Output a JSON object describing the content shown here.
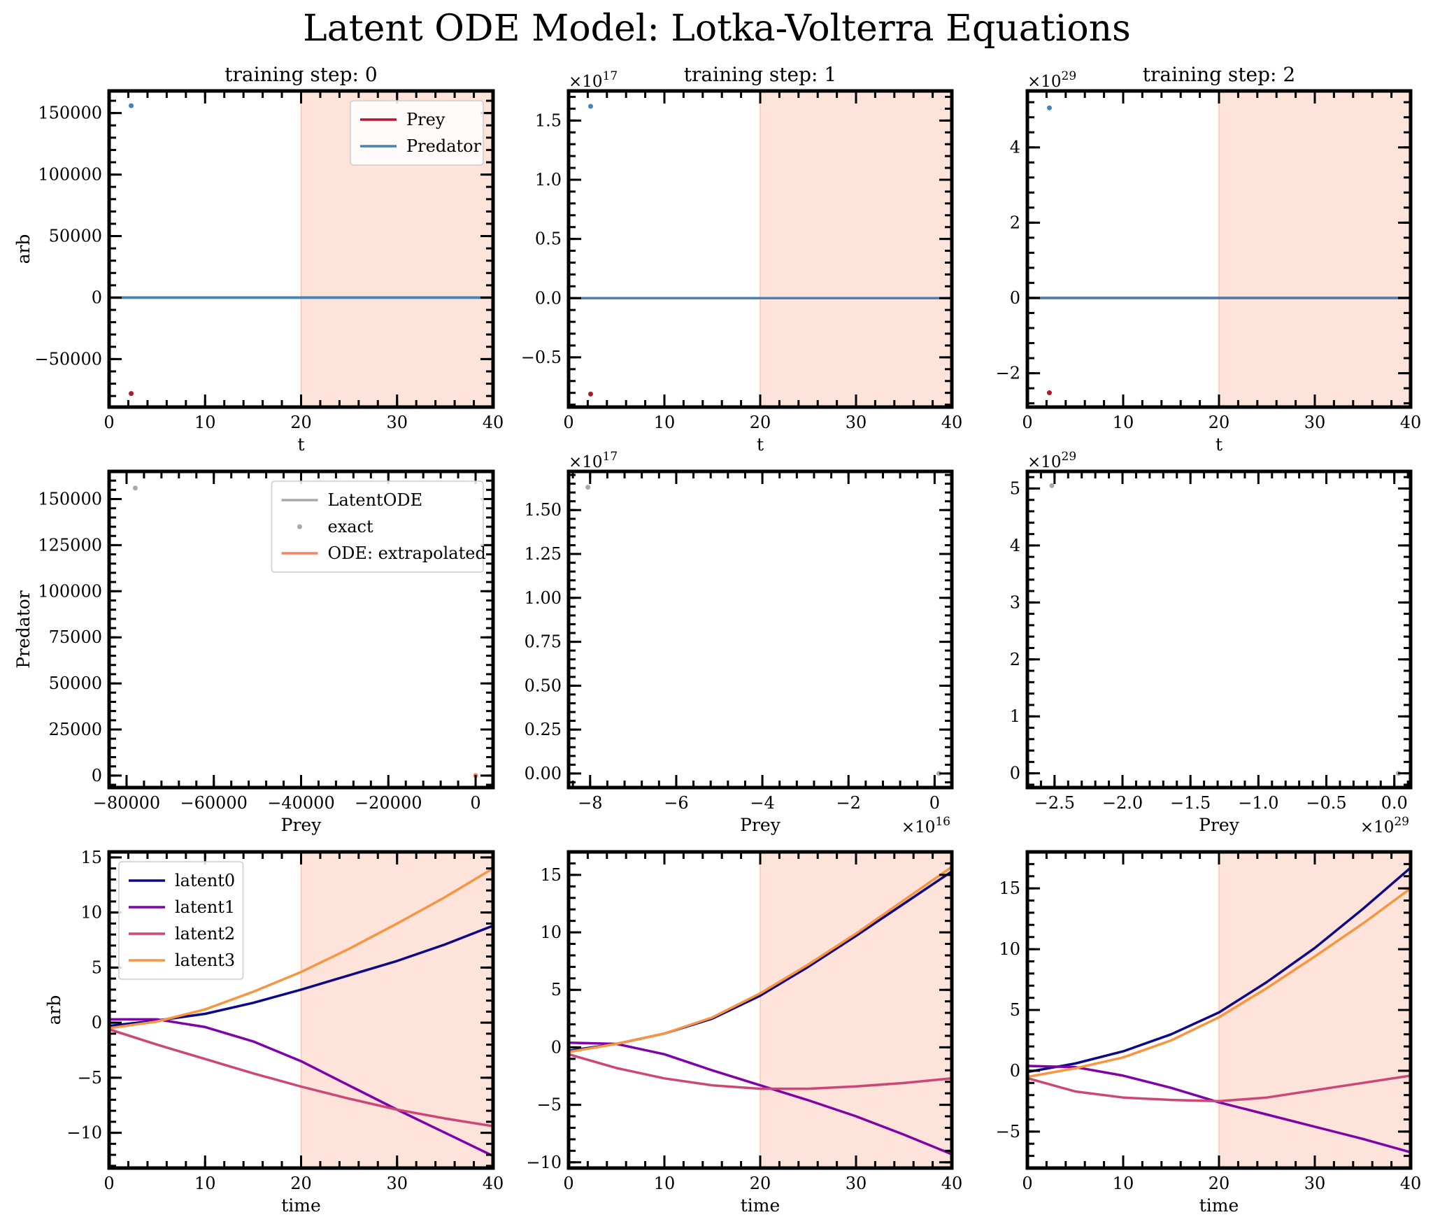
{
  "title": "Latent ODE Model: Lotka-Volterra Equations",
  "colors": {
    "prey": "#b2182b",
    "predator": "#4682b4",
    "latentode": "#a9a9a9",
    "exact": "#a9a9a9",
    "extrapolated": "#f4845f",
    "shade": "#fde3da",
    "latent0": "#0d0887",
    "latent1": "#7e03a8",
    "latent2": "#cc4778",
    "latent3": "#f89540"
  },
  "chart_data": [
    {
      "id": "ts0",
      "type": "line",
      "title": "training step: 0",
      "xlabel": "t",
      "ylabel": "arb",
      "xlim": [
        0,
        40
      ],
      "ylim": [
        -89000,
        168000
      ],
      "xticks": [
        0,
        10,
        20,
        30,
        40
      ],
      "xticklabels": [
        "0",
        "10",
        "20",
        "30",
        "40"
      ],
      "yticks": [
        -50000,
        0,
        50000,
        100000,
        150000
      ],
      "yticklabels": [
        "−50000",
        "0",
        "50000",
        "100000",
        "150000"
      ],
      "offset_text": "",
      "shade": [
        20,
        40
      ],
      "legend": [
        {
          "label": "Prey",
          "color_key": "prey",
          "kind": "line"
        },
        {
          "label": "Predator",
          "color_key": "predator",
          "kind": "line"
        }
      ],
      "legend_position": "upper right",
      "series": [
        {
          "name": "Prey",
          "color_key": "prey",
          "x": [
            0,
            2.5,
            40
          ],
          "y": [
            0,
            0,
            0
          ]
        },
        {
          "name": "Predator",
          "color_key": "predator",
          "x": [
            0,
            2.5,
            40
          ],
          "y": [
            0,
            0,
            0
          ]
        }
      ],
      "points": [
        {
          "color_key": "predator",
          "x": 2.3,
          "y": 156000
        },
        {
          "color_key": "prey",
          "x": 2.3,
          "y": -78000
        }
      ]
    },
    {
      "id": "ts1",
      "type": "line",
      "title": "training step: 1",
      "xlabel": "t",
      "ylabel": "",
      "xlim": [
        0,
        40
      ],
      "ylim": [
        -0.92,
        1.75
      ],
      "xticks": [
        0,
        10,
        20,
        30,
        40
      ],
      "xticklabels": [
        "0",
        "10",
        "20",
        "30",
        "40"
      ],
      "yticks": [
        -0.5,
        0,
        0.5,
        1.0,
        1.5
      ],
      "yticklabels": [
        "−0.5",
        "0.0",
        "0.5",
        "1.0",
        "1.5"
      ],
      "offset_text": "×10^17",
      "shade": [
        20,
        40
      ],
      "series": [
        {
          "name": "Prey",
          "color_key": "prey",
          "x": [
            0,
            40
          ],
          "y": [
            0,
            0
          ]
        },
        {
          "name": "Predator",
          "color_key": "predator",
          "x": [
            0,
            40
          ],
          "y": [
            0,
            0
          ]
        }
      ],
      "points": [
        {
          "color_key": "predator",
          "x": 2.3,
          "y": 1.62
        },
        {
          "color_key": "prey",
          "x": 2.3,
          "y": -0.81
        }
      ]
    },
    {
      "id": "ts2",
      "type": "line",
      "title": "training step: 2",
      "xlabel": "t",
      "ylabel": "",
      "xlim": [
        0,
        40
      ],
      "ylim": [
        -2.9,
        5.5
      ],
      "xticks": [
        0,
        10,
        20,
        30,
        40
      ],
      "xticklabels": [
        "0",
        "10",
        "20",
        "30",
        "40"
      ],
      "yticks": [
        -2,
        0,
        2,
        4
      ],
      "yticklabels": [
        "−2",
        "0",
        "2",
        "4"
      ],
      "offset_text": "×10^29",
      "shade": [
        20,
        40
      ],
      "series": [
        {
          "name": "Prey",
          "color_key": "prey",
          "x": [
            0,
            40
          ],
          "y": [
            0,
            0
          ]
        },
        {
          "name": "Predator",
          "color_key": "predator",
          "x": [
            0,
            40
          ],
          "y": [
            0,
            0
          ]
        }
      ],
      "points": [
        {
          "color_key": "predator",
          "x": 2.3,
          "y": 5.05
        },
        {
          "color_key": "prey",
          "x": 2.3,
          "y": -2.52
        }
      ]
    },
    {
      "id": "phase0",
      "type": "scatter",
      "xlabel": "Prey",
      "ylabel": "Predator",
      "xlim": [
        -84000,
        4000
      ],
      "ylim": [
        -6500,
        165000
      ],
      "xticks": [
        -80000,
        -60000,
        -40000,
        -20000,
        0
      ],
      "xticklabels": [
        "−80000",
        "−60000",
        "−40000",
        "−20000",
        "0"
      ],
      "yticks": [
        0,
        25000,
        50000,
        75000,
        100000,
        125000,
        150000
      ],
      "yticklabels": [
        "0",
        "25000",
        "50000",
        "75000",
        "100000",
        "125000",
        "150000"
      ],
      "offset_text": "",
      "x_offset_text": "",
      "legend": [
        {
          "label": "LatentODE",
          "color_key": "latentode",
          "kind": "line"
        },
        {
          "label": "exact",
          "color_key": "exact",
          "kind": "dot"
        },
        {
          "label": "ODE: extrapolated",
          "color_key": "extrapolated",
          "kind": "line"
        }
      ],
      "legend_position": "upper right",
      "points": [
        {
          "color_key": "exact",
          "x": -78000,
          "y": 156000
        },
        {
          "color_key": "extrapolated",
          "x": 0,
          "y": 0
        },
        {
          "color_key": "exact",
          "x": 1500,
          "y": 125000
        }
      ]
    },
    {
      "id": "phase1",
      "type": "scatter",
      "xlabel": "Prey",
      "ylabel": "",
      "xlim": [
        -8.5,
        0.4
      ],
      "ylim": [
        -0.08,
        1.72
      ],
      "xticks": [
        -8,
        -6,
        -4,
        -2,
        0
      ],
      "xticklabels": [
        "−8",
        "−6",
        "−4",
        "−2",
        "0"
      ],
      "yticks": [
        0,
        0.25,
        0.5,
        0.75,
        1.0,
        1.25,
        1.5
      ],
      "yticklabels": [
        "0.00",
        "0.25",
        "0.50",
        "0.75",
        "1.00",
        "1.25",
        "1.50"
      ],
      "offset_text": "×10^17",
      "x_offset_text": "×10^16",
      "points": [
        {
          "color_key": "exact",
          "x": -8.05,
          "y": 1.63
        },
        {
          "color_key": "exact",
          "x": 0.1,
          "y": 0.0
        }
      ]
    },
    {
      "id": "phase2",
      "type": "scatter",
      "xlabel": "Prey",
      "ylabel": "",
      "xlim": [
        -2.7,
        0.12
      ],
      "ylim": [
        -0.25,
        5.3
      ],
      "xticks": [
        -2.5,
        -2.0,
        -1.5,
        -1.0,
        -0.5,
        0.0
      ],
      "xticklabels": [
        "−2.5",
        "−2.0",
        "−1.5",
        "−1.0",
        "−0.5",
        "0.0"
      ],
      "yticks": [
        0,
        1,
        2,
        3,
        4,
        5
      ],
      "yticklabels": [
        "0",
        "1",
        "2",
        "3",
        "4",
        "5"
      ],
      "offset_text": "×10^29",
      "x_offset_text": "×10^29",
      "points": [
        {
          "color_key": "exact",
          "x": -2.52,
          "y": 5.05
        },
        {
          "color_key": "exact",
          "x": 0.03,
          "y": 0.0
        }
      ]
    },
    {
      "id": "latent_ts0",
      "type": "line",
      "xlabel": "time",
      "ylabel": "arb",
      "xlim": [
        0,
        40
      ],
      "ylim": [
        -13.2,
        15.5
      ],
      "xticks": [
        0,
        10,
        20,
        30,
        40
      ],
      "xticklabels": [
        "0",
        "10",
        "20",
        "30",
        "40"
      ],
      "yticks": [
        -10,
        -5,
        0,
        5,
        10,
        15
      ],
      "yticklabels": [
        "−10",
        "−5",
        "0",
        "5",
        "10",
        "15"
      ],
      "offset_text": "",
      "shade": [
        20,
        40
      ],
      "legend": [
        {
          "label": "latent0",
          "color_key": "latent0",
          "kind": "line"
        },
        {
          "label": "latent1",
          "color_key": "latent1",
          "kind": "line"
        },
        {
          "label": "latent2",
          "color_key": "latent2",
          "kind": "line"
        },
        {
          "label": "latent3",
          "color_key": "latent3",
          "kind": "line"
        }
      ],
      "legend_position": "upper left",
      "series": [
        {
          "name": "latent0",
          "color_key": "latent0",
          "x": [
            0,
            5,
            10,
            15,
            20,
            25,
            30,
            35,
            40
          ],
          "y": [
            -0.3,
            0.2,
            0.8,
            1.8,
            3.0,
            4.3,
            5.6,
            7.1,
            8.8
          ]
        },
        {
          "name": "latent1",
          "color_key": "latent1",
          "x": [
            0,
            5,
            10,
            15,
            20,
            25,
            30,
            35,
            40
          ],
          "y": [
            0.3,
            0.3,
            -0.4,
            -1.7,
            -3.5,
            -5.7,
            -7.9,
            -10.0,
            -12.1
          ]
        },
        {
          "name": "latent2",
          "color_key": "latent2",
          "x": [
            0,
            5,
            10,
            15,
            20,
            25,
            30,
            35,
            40
          ],
          "y": [
            -0.6,
            -2.0,
            -3.3,
            -4.6,
            -5.8,
            -6.9,
            -7.9,
            -8.7,
            -9.4
          ]
        },
        {
          "name": "latent3",
          "color_key": "latent3",
          "x": [
            0,
            5,
            10,
            15,
            20,
            25,
            30,
            35,
            40
          ],
          "y": [
            -0.5,
            0.1,
            1.2,
            2.8,
            4.6,
            6.7,
            9.0,
            11.4,
            14.0
          ]
        }
      ]
    },
    {
      "id": "latent_ts1",
      "type": "line",
      "xlabel": "time",
      "ylabel": "",
      "xlim": [
        0,
        40
      ],
      "ylim": [
        -10.5,
        17.0
      ],
      "xticks": [
        0,
        10,
        20,
        30,
        40
      ],
      "xticklabels": [
        "0",
        "10",
        "20",
        "30",
        "40"
      ],
      "yticks": [
        -10,
        -5,
        0,
        5,
        10,
        15
      ],
      "yticklabels": [
        "−10",
        "−5",
        "0",
        "5",
        "10",
        "15"
      ],
      "offset_text": "",
      "shade": [
        20,
        40
      ],
      "series": [
        {
          "name": "latent0",
          "color_key": "latent0",
          "x": [
            0,
            5,
            10,
            15,
            20,
            25,
            30,
            35,
            40
          ],
          "y": [
            -0.3,
            0.3,
            1.2,
            2.5,
            4.5,
            7.0,
            9.7,
            12.5,
            15.3
          ]
        },
        {
          "name": "latent1",
          "color_key": "latent1",
          "x": [
            0,
            5,
            10,
            15,
            20,
            25,
            30,
            35,
            40
          ],
          "y": [
            0.4,
            0.3,
            -0.6,
            -2.0,
            -3.3,
            -4.6,
            -6.0,
            -7.6,
            -9.3
          ]
        },
        {
          "name": "latent2",
          "color_key": "latent2",
          "x": [
            0,
            5,
            10,
            15,
            20,
            25,
            30,
            35,
            40
          ],
          "y": [
            -0.6,
            -1.8,
            -2.7,
            -3.3,
            -3.6,
            -3.6,
            -3.4,
            -3.1,
            -2.7
          ]
        },
        {
          "name": "latent3",
          "color_key": "latent3",
          "x": [
            0,
            5,
            10,
            15,
            20,
            25,
            30,
            35,
            40
          ],
          "y": [
            -0.4,
            0.3,
            1.2,
            2.6,
            4.7,
            7.2,
            9.9,
            12.8,
            15.7
          ]
        }
      ]
    },
    {
      "id": "latent_ts2",
      "type": "line",
      "xlabel": "time",
      "ylabel": "",
      "xlim": [
        0,
        40
      ],
      "ylim": [
        -8.0,
        18.0
      ],
      "xticks": [
        0,
        10,
        20,
        30,
        40
      ],
      "xticklabels": [
        "0",
        "10",
        "20",
        "30",
        "40"
      ],
      "yticks": [
        -5,
        0,
        5,
        10,
        15
      ],
      "yticklabels": [
        "−5",
        "0",
        "5",
        "10",
        "15"
      ],
      "offset_text": "",
      "shade": [
        20,
        40
      ],
      "series": [
        {
          "name": "latent0",
          "color_key": "latent0",
          "x": [
            0,
            5,
            10,
            15,
            20,
            25,
            30,
            35,
            40
          ],
          "y": [
            -0.1,
            0.6,
            1.6,
            3.0,
            4.8,
            7.3,
            10.1,
            13.3,
            16.7
          ]
        },
        {
          "name": "latent1",
          "color_key": "latent1",
          "x": [
            0,
            5,
            10,
            15,
            20,
            25,
            30,
            35,
            40
          ],
          "y": [
            0.4,
            0.3,
            -0.4,
            -1.4,
            -2.6,
            -3.6,
            -4.6,
            -5.6,
            -6.7
          ]
        },
        {
          "name": "latent2",
          "color_key": "latent2",
          "x": [
            0,
            5,
            10,
            15,
            20,
            25,
            30,
            35,
            40
          ],
          "y": [
            -0.6,
            -1.7,
            -2.2,
            -2.4,
            -2.5,
            -2.2,
            -1.6,
            -1.0,
            -0.4
          ]
        },
        {
          "name": "latent3",
          "color_key": "latent3",
          "x": [
            0,
            5,
            10,
            15,
            20,
            25,
            30,
            35,
            40
          ],
          "y": [
            -0.5,
            0.2,
            1.1,
            2.5,
            4.4,
            6.8,
            9.4,
            12.1,
            15.0
          ]
        }
      ]
    }
  ]
}
